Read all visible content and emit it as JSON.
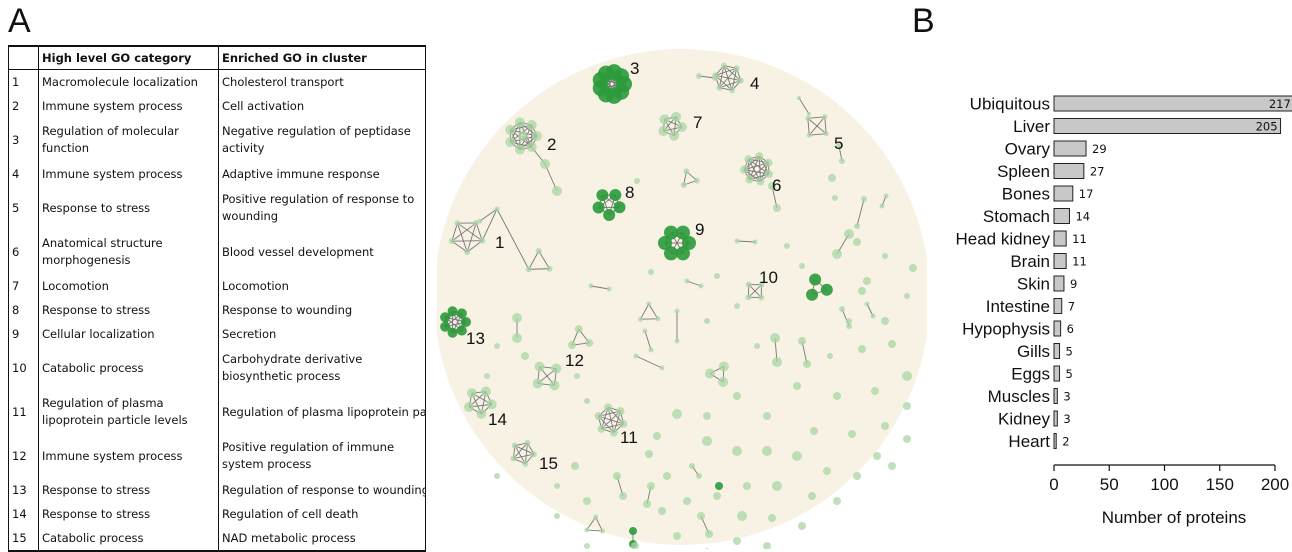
{
  "panel_a": {
    "label": "A",
    "table": {
      "headers": [
        "",
        "High level GO category",
        "Enriched GO in cluster"
      ],
      "rows": [
        [
          "1",
          "Macromolecule localization",
          "Cholesterol transport"
        ],
        [
          "2",
          "Immune system process",
          "Cell activation"
        ],
        [
          "3",
          "Regulation of molecular function",
          "Negative regulation of peptidase activity"
        ],
        [
          "4",
          "Immune system process",
          "Adaptive immune response"
        ],
        [
          "5",
          "Response to stress",
          "Positive regulation of response to wounding"
        ],
        [
          "6",
          "Anatomical structure morphogenesis",
          "Blood vessel development"
        ],
        [
          "7",
          "Locomotion",
          "Locomotion"
        ],
        [
          "8",
          "Response to stress",
          "Response to wounding"
        ],
        [
          "9",
          "Cellular localization",
          "Secretion"
        ],
        [
          "10",
          "Catabolic process",
          "Carbohydrate derivative biosynthetic process"
        ],
        [
          "11",
          "Regulation of plasma lipoprotein particle levels",
          "Regulation of plasma lipoprotein par"
        ],
        [
          "12",
          "Immune system process",
          "Positive regulation of immune system process"
        ],
        [
          "13",
          "Response to stress",
          "Regulation of response to wounding"
        ],
        [
          "14",
          "Response to stress",
          "Regulation of cell death"
        ],
        [
          "15",
          "Catabolic process",
          "NAD metabolic process"
        ]
      ]
    },
    "network_labels": [
      "1",
      "2",
      "3",
      "4",
      "5",
      "6",
      "7",
      "8",
      "9",
      "10",
      "11",
      "12",
      "13",
      "14",
      "15"
    ],
    "colors": {
      "background": "#f8f2e5",
      "node_light": "#a9d6a3",
      "node_dark": "#2a9a3a",
      "edge": "#777777"
    }
  },
  "panel_b": {
    "label": "B",
    "bar_color": "#c8c8c8"
  },
  "chart_data": {
    "type": "bar",
    "orientation": "horizontal",
    "categories": [
      "Ubiquitous",
      "Liver",
      "Ovary",
      "Spleen",
      "Bones",
      "Stomach",
      "Head kidney",
      "Brain",
      "Skin",
      "Intestine",
      "Hypophysis",
      "Gills",
      "Eggs",
      "Muscles",
      "Kidney",
      "Heart"
    ],
    "values": [
      217,
      205,
      29,
      27,
      17,
      14,
      11,
      11,
      9,
      7,
      6,
      5,
      5,
      3,
      3,
      2
    ],
    "data_labels": [
      "217",
      "205",
      "29",
      "27",
      "17",
      "14",
      "11",
      "11",
      "9",
      "7",
      "6",
      "5",
      "5",
      "3",
      "3",
      "2"
    ],
    "title": "",
    "xlabel": "Number of proteins",
    "ylabel": "",
    "xlim": [
      0,
      200
    ],
    "xticks": [
      "0",
      "50",
      "100",
      "150",
      "200"
    ],
    "grid": false
  }
}
